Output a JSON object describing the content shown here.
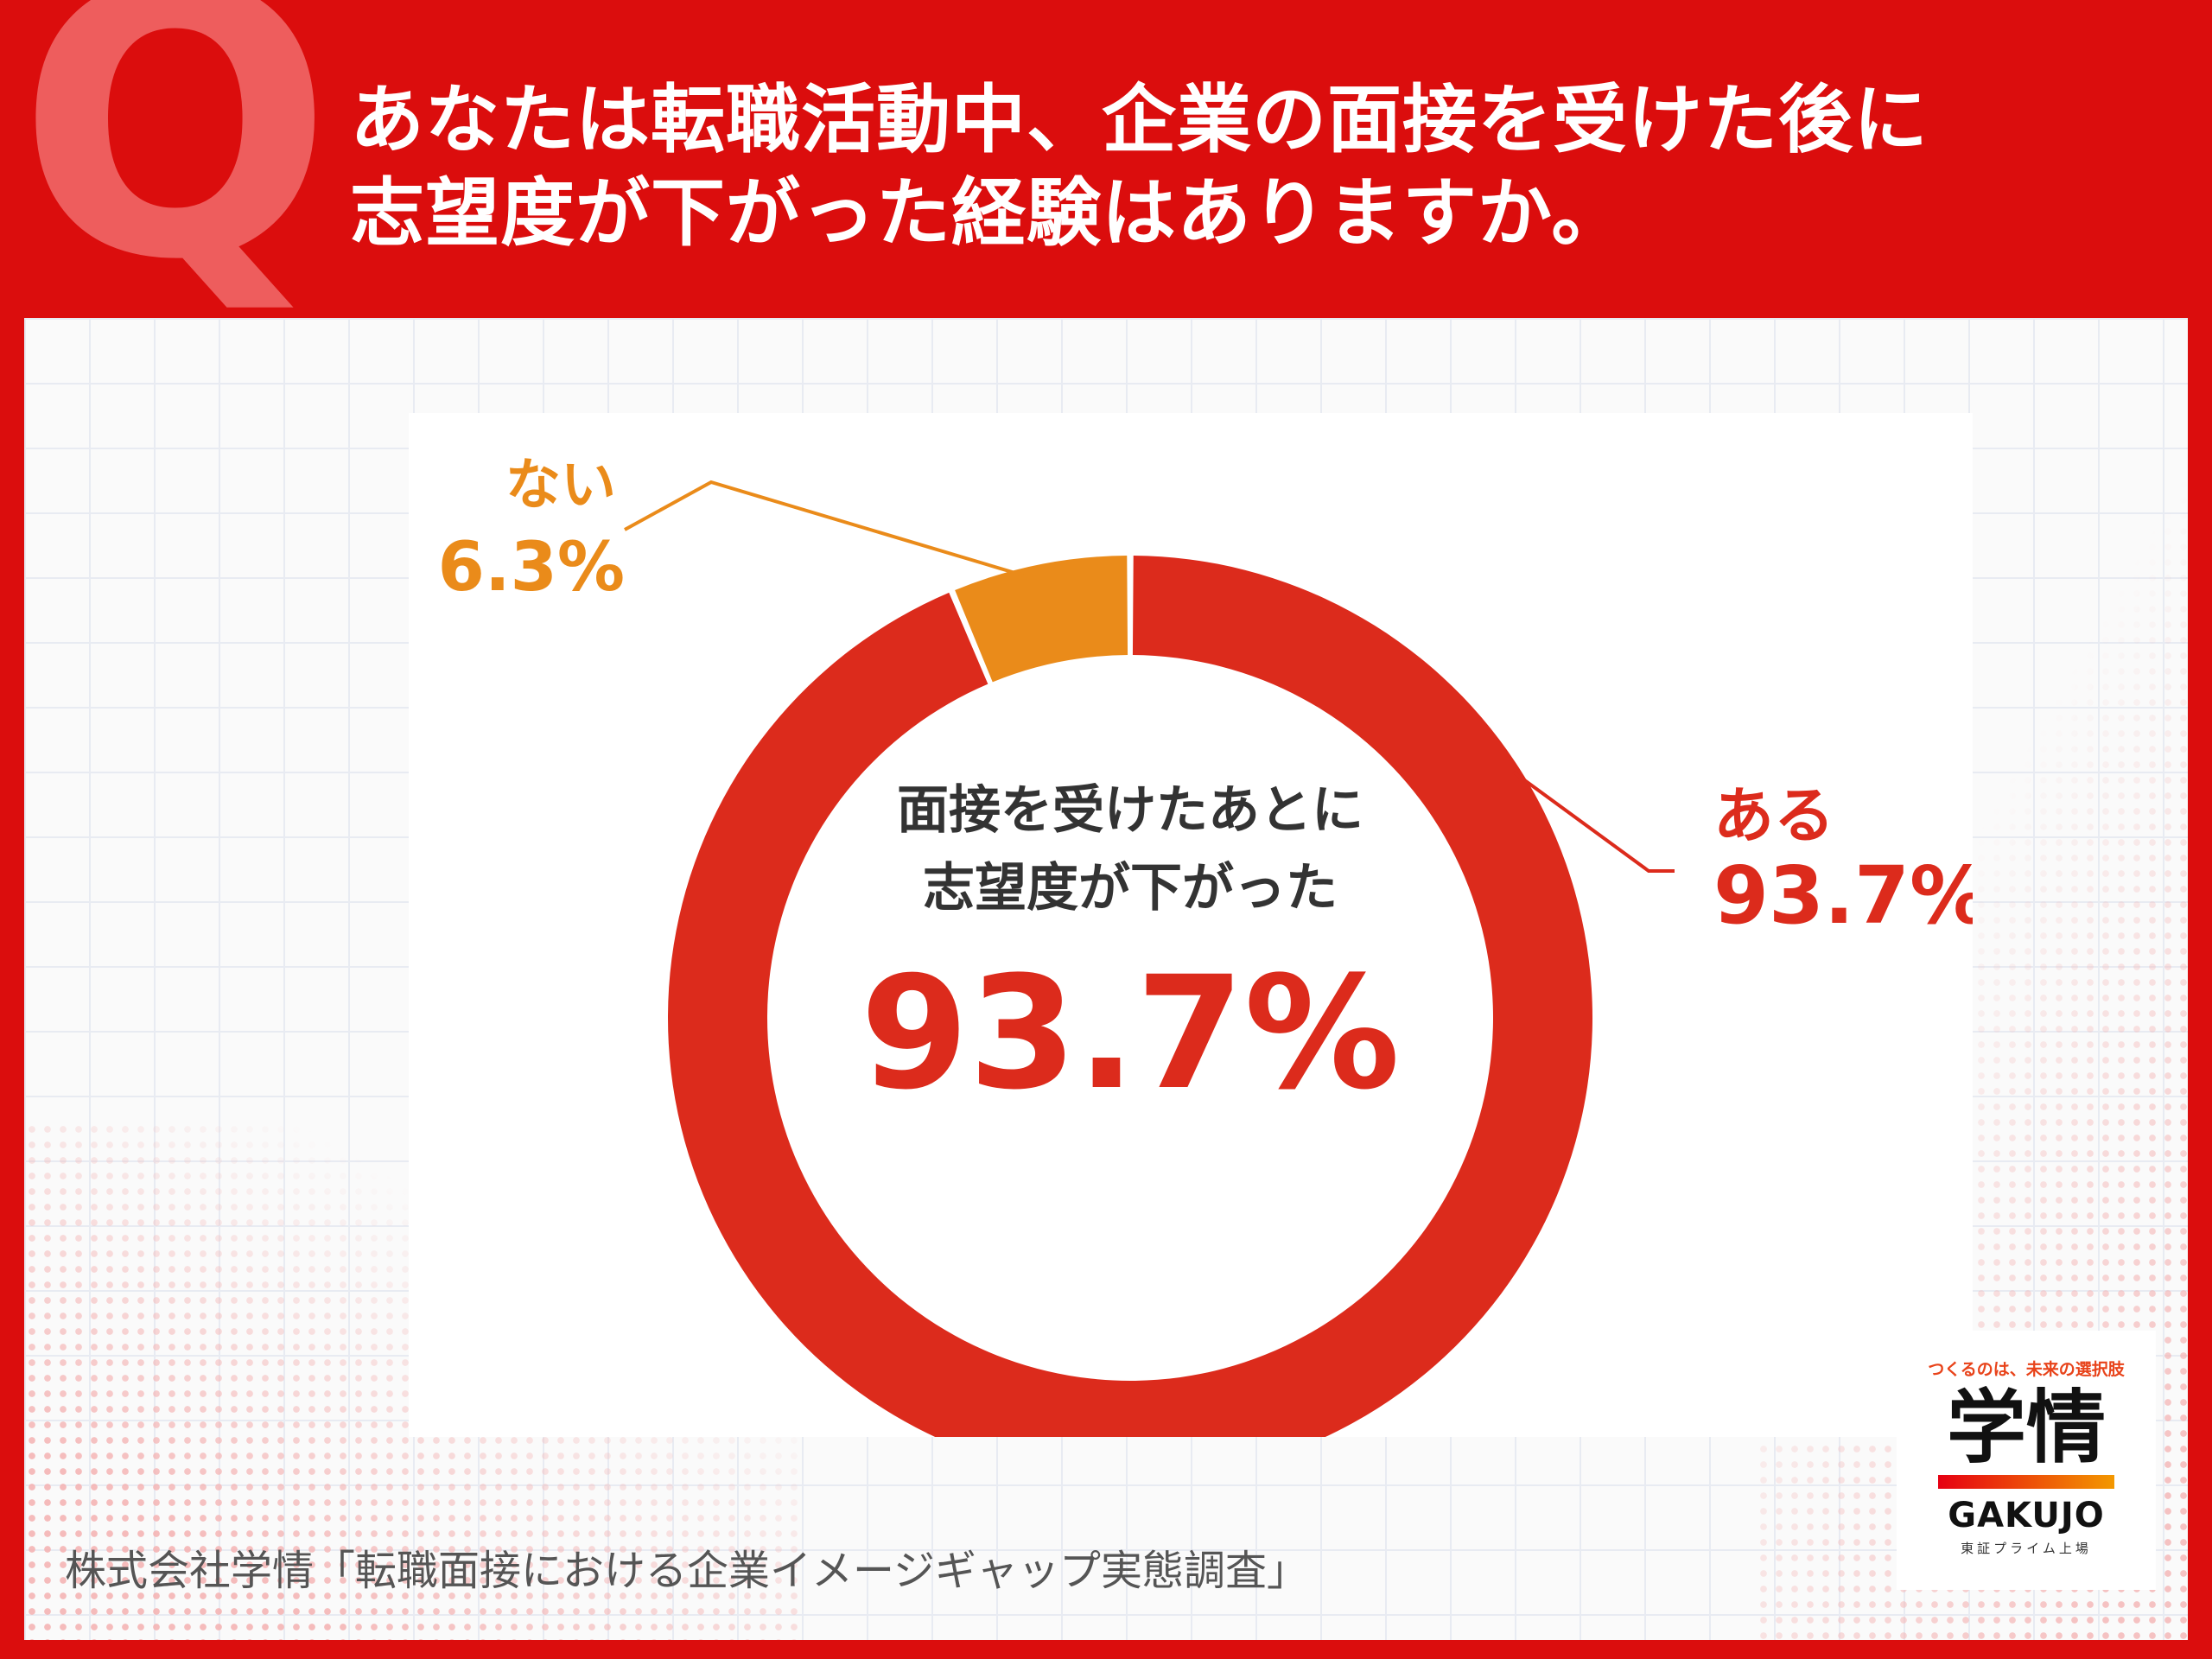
{
  "header": {
    "q_mark": "Q",
    "question_lines": [
      "あなたは転職活動中、企業の面接を受けた後に",
      "志望度が下がった経験はありますか。"
    ]
  },
  "chart_data": {
    "type": "pie",
    "style": "donut",
    "slices": [
      {
        "label": "ある",
        "value": 93.7,
        "value_label": "93.7%",
        "color": "#dc2b1c"
      },
      {
        "label": "ない",
        "value": 6.3,
        "value_label": "6.3%",
        "color": "#ea8b1a"
      }
    ],
    "center_text": [
      "面接を受けたあとに",
      "志望度が下がった"
    ],
    "center_value": "93.7%",
    "center_value_color": "#dc2b1c",
    "center_text_color": "#333333"
  },
  "source": "株式会社学情「転職面接における企業イメージギャップ実態調査」",
  "logo": {
    "tagline": "つくるのは、未来の選択肢",
    "mark": "学情",
    "name": "GAKUJO",
    "sub": "東証プライム上場",
    "tagline_color": "#e8431a",
    "bar_gradient": [
      "#e60012",
      "#f39800"
    ]
  },
  "colors": {
    "header_bg": "#db0d0d",
    "q_color": "#ee5d5d"
  }
}
